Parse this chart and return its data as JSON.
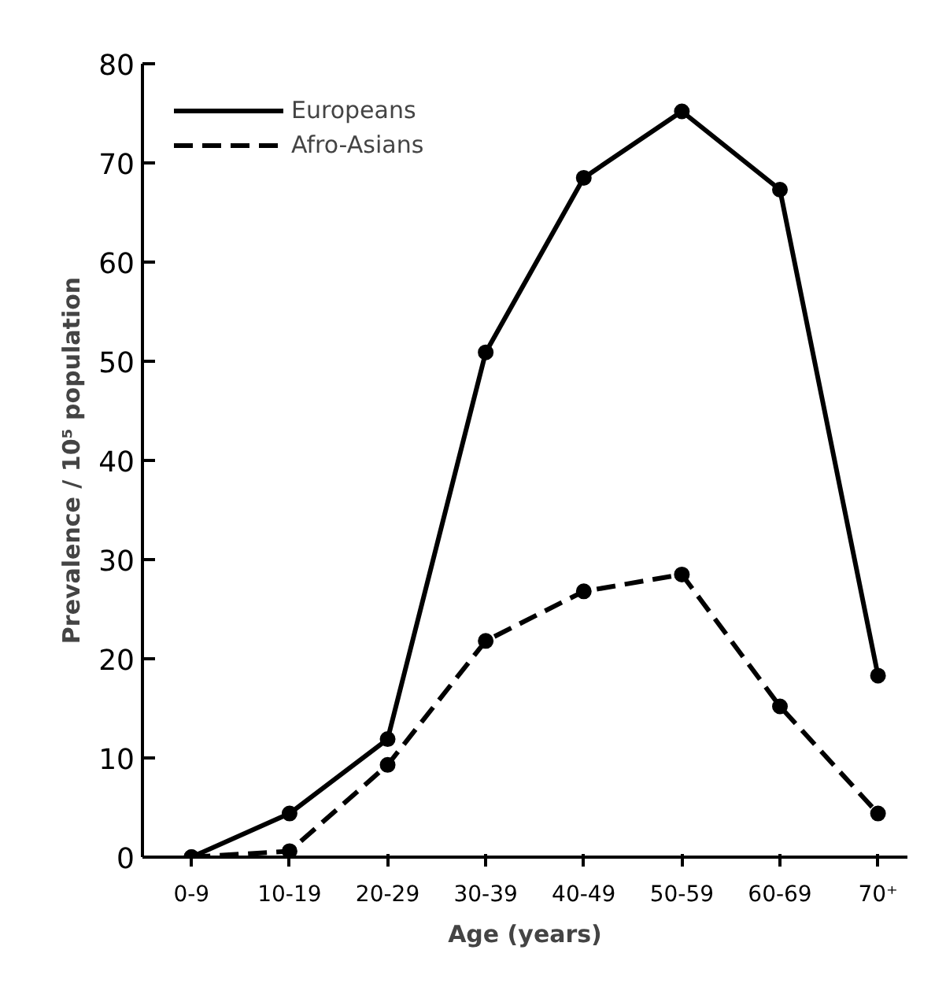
{
  "chart_data": {
    "type": "line",
    "xlabel": "Age (years)",
    "ylabel": "Prevalence / 10⁵ population",
    "categories": [
      "0-9",
      "10-19",
      "20-29",
      "30-39",
      "40-49",
      "50-59",
      "60-69",
      "70⁺"
    ],
    "ylim": [
      0,
      80
    ],
    "yticks": [
      0,
      10,
      20,
      30,
      40,
      50,
      60,
      70,
      80
    ],
    "series": [
      {
        "name": "Europeans",
        "color": "#000000",
        "line_style": "solid",
        "values": [
          0,
          4.4,
          11.9,
          50.9,
          68.5,
          75.2,
          67.3,
          18.3
        ]
      },
      {
        "name": "Afro-Asians",
        "color": "#000000",
        "line_style": "dashed",
        "values": [
          0,
          0.6,
          9.3,
          21.8,
          26.8,
          28.5,
          15.2,
          4.4
        ]
      }
    ],
    "marker": "circle",
    "grid": false,
    "legend": "top left"
  }
}
